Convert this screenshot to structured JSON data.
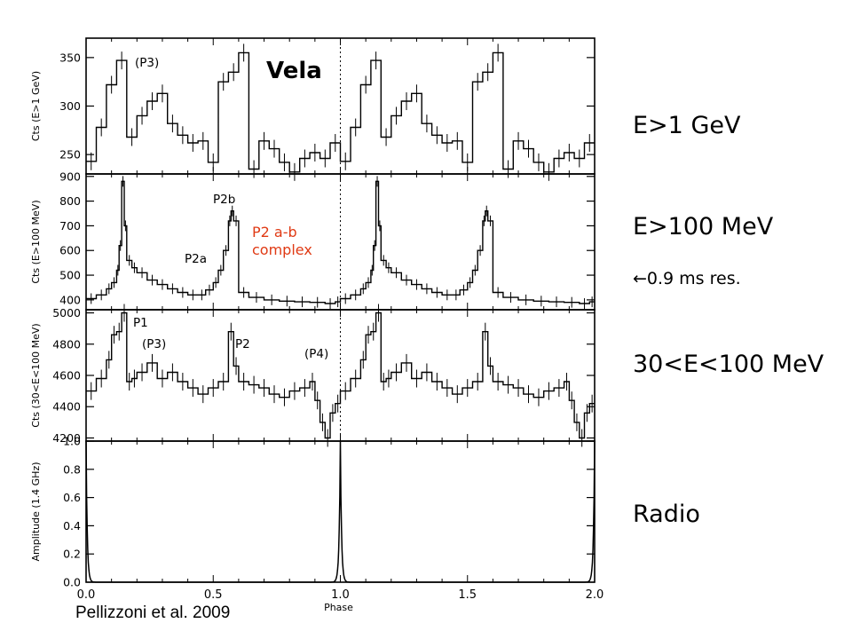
{
  "title": "Vela",
  "citation": "Pellizzoni et al. 2009",
  "side_labels": {
    "gev": "E>1 GeV",
    "mev100": "E>100 MeV",
    "resolution_arrow": "←",
    "resolution": "0.9 ms res.",
    "mev30": "30<E<100 MeV",
    "radio": "Radio"
  },
  "annotations": {
    "p2ab_line1": "P2 a-b",
    "p2ab_line2": "complex"
  },
  "colors": {
    "annotation": "#e03a14",
    "axes": "#000000"
  },
  "chart_data": [
    {
      "type": "line",
      "ylabel": "Cts (E>1 GeV)",
      "ylim": [
        230,
        370
      ],
      "yticks": [
        250,
        300,
        350
      ],
      "x_range": [
        0.0,
        2.0
      ],
      "labels": [
        "(P3)"
      ],
      "x": [
        0.0,
        0.04,
        0.08,
        0.12,
        0.16,
        0.2,
        0.24,
        0.28,
        0.32,
        0.36,
        0.4,
        0.44,
        0.48,
        0.52,
        0.56,
        0.6,
        0.64,
        0.68,
        0.72,
        0.76,
        0.8,
        0.84,
        0.88,
        0.92,
        0.96
      ],
      "y": [
        243,
        278,
        322,
        347,
        268,
        290,
        305,
        313,
        282,
        270,
        262,
        264,
        242,
        325,
        335,
        355,
        235,
        264,
        256,
        242,
        232,
        246,
        252,
        246,
        262
      ]
    },
    {
      "type": "line",
      "ylabel": "Cts (E>100 MeV)",
      "ylim": [
        360,
        910
      ],
      "yticks": [
        400,
        500,
        600,
        700,
        800,
        900
      ],
      "x_range": [
        0.0,
        2.0
      ],
      "labels": [
        "P2b",
        "P2a"
      ],
      "x": [
        0.0,
        0.04,
        0.08,
        0.1,
        0.12,
        0.13,
        0.14,
        0.15,
        0.16,
        0.18,
        0.2,
        0.24,
        0.28,
        0.32,
        0.36,
        0.4,
        0.44,
        0.47,
        0.5,
        0.52,
        0.54,
        0.56,
        0.57,
        0.58,
        0.6,
        0.64,
        0.7,
        0.76,
        0.82,
        0.88,
        0.94,
        0.98
      ],
      "y": [
        405,
        420,
        445,
        470,
        520,
        620,
        880,
        700,
        560,
        530,
        510,
        480,
        462,
        445,
        430,
        420,
        420,
        440,
        470,
        520,
        600,
        720,
        760,
        720,
        430,
        410,
        400,
        395,
        392,
        390,
        385,
        392
      ]
    },
    {
      "type": "line",
      "ylabel": "Cts (30<E<100 MeV)",
      "ylim": [
        4180,
        5020
      ],
      "yticks": [
        4200,
        4400,
        4600,
        4800,
        5000
      ],
      "x_range": [
        0.0,
        2.0
      ],
      "labels": [
        "P1",
        "(P3)",
        "P2",
        "(P4)"
      ],
      "x": [
        0.0,
        0.04,
        0.08,
        0.1,
        0.12,
        0.14,
        0.16,
        0.18,
        0.2,
        0.24,
        0.28,
        0.32,
        0.36,
        0.4,
        0.44,
        0.48,
        0.52,
        0.56,
        0.58,
        0.6,
        0.64,
        0.68,
        0.72,
        0.76,
        0.8,
        0.84,
        0.88,
        0.9,
        0.92,
        0.94,
        0.96,
        0.98
      ],
      "y": [
        4500,
        4580,
        4700,
        4860,
        4880,
        5000,
        4560,
        4580,
        4620,
        4680,
        4580,
        4620,
        4560,
        4520,
        4480,
        4520,
        4560,
        4880,
        4660,
        4560,
        4540,
        4520,
        4480,
        4460,
        4500,
        4520,
        4560,
        4440,
        4300,
        4200,
        4360,
        4420
      ]
    },
    {
      "type": "line",
      "ylabel": "Amplitude (1.4 GHz)",
      "xlabel": "Phase",
      "ylim": [
        0.0,
        1.0
      ],
      "yticks": [
        0.0,
        0.2,
        0.4,
        0.6,
        0.8,
        1.0
      ],
      "xlim": [
        0.0,
        2.0
      ],
      "xticks": [
        0.0,
        0.5,
        1.0,
        1.5,
        2.0
      ],
      "peak_phase": 1.0,
      "peak_amplitude": 1.0,
      "peak_width": 0.0045
    }
  ]
}
